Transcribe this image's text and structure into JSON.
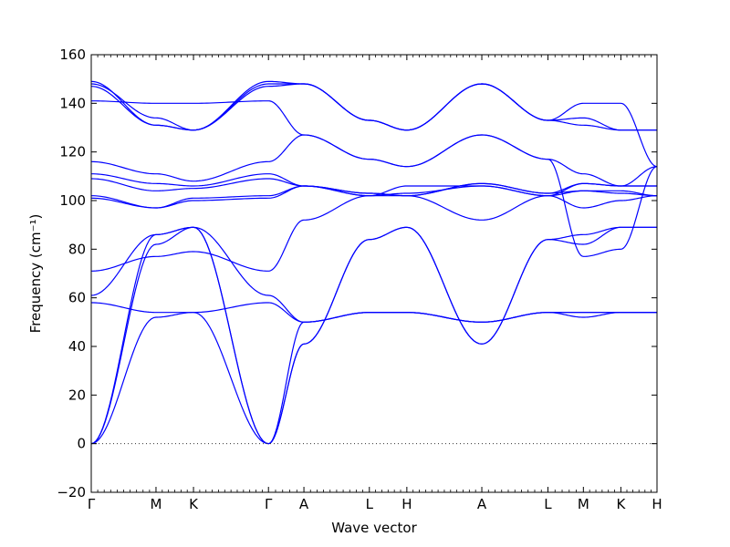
{
  "chart_data": {
    "type": "line",
    "title": "",
    "xlabel": "Wave vector",
    "ylabel": "Frequency (cm⁻¹)",
    "ylim": [
      -20,
      160
    ],
    "yticks": [
      -20,
      0,
      20,
      40,
      60,
      80,
      100,
      120,
      140,
      160
    ],
    "xlim": [
      0,
      8.3
    ],
    "high_symmetry_points": [
      {
        "label": "Γ",
        "x": 0.0
      },
      {
        "label": "M",
        "x": 0.95
      },
      {
        "label": "K",
        "x": 1.5
      },
      {
        "label": "Γ",
        "x": 2.6
      },
      {
        "label": "A",
        "x": 3.12
      },
      {
        "label": "L",
        "x": 4.08
      },
      {
        "label": "H",
        "x": 4.63
      },
      {
        "label": "A",
        "x": 5.73
      },
      {
        "label": "L",
        "x": 6.7
      },
      {
        "label": "M",
        "x": 7.22
      },
      {
        "label": "K",
        "x": 7.77
      },
      {
        "label": "H",
        "x": 8.3
      }
    ],
    "zero_line": true,
    "line_color": "#0000ff",
    "series": [
      {
        "x": [
          0,
          0.95,
          1.5,
          2.6,
          3.12,
          4.08,
          4.63,
          5.73,
          6.7,
          7.22,
          7.77,
          8.3
        ],
        "y": [
          0,
          52,
          54,
          0,
          50,
          54,
          54,
          50,
          54,
          52,
          54,
          54
        ]
      },
      {
        "x": [
          0,
          0.95,
          1.5,
          2.6,
          3.12,
          4.08,
          4.63,
          5.73,
          6.7,
          7.22,
          7.77,
          8.3
        ],
        "y": [
          0,
          82,
          89,
          0,
          41,
          84,
          89,
          41,
          84,
          82,
          89,
          89
        ]
      },
      {
        "x": [
          0,
          0.95,
          1.5,
          2.6,
          3.12,
          4.08,
          4.63,
          5.73,
          6.7,
          7.22,
          7.77,
          8.3
        ],
        "y": [
          0,
          86,
          89,
          0,
          41,
          84,
          89,
          41,
          84,
          86,
          89,
          89
        ]
      },
      {
        "x": [
          0,
          0.95,
          1.5,
          2.6,
          3.12,
          4.08,
          4.63,
          5.73,
          6.7,
          7.22,
          7.77,
          8.3
        ],
        "y": [
          58,
          54,
          54,
          58,
          50,
          54,
          54,
          50,
          54,
          54,
          54,
          54
        ]
      },
      {
        "x": [
          0,
          0.95,
          1.5,
          2.6,
          3.12,
          4.08,
          4.63,
          5.73,
          6.7,
          7.22,
          7.77,
          8.3
        ],
        "y": [
          61,
          86,
          89,
          61,
          50,
          54,
          54,
          50,
          54,
          54,
          54,
          54
        ]
      },
      {
        "x": [
          0,
          0.95,
          1.5,
          2.6,
          3.12,
          4.08,
          4.63,
          5.73,
          6.7,
          7.22,
          7.77,
          8.3
        ],
        "y": [
          71,
          77,
          79,
          71,
          92,
          102,
          102,
          92,
          102,
          97,
          100,
          102
        ]
      },
      {
        "x": [
          0,
          0.95,
          1.5,
          2.6,
          3.12,
          4.08,
          4.63,
          5.73,
          6.7,
          7.22,
          7.77,
          8.3
        ],
        "y": [
          101,
          97,
          100,
          101,
          106,
          102,
          106,
          106,
          102,
          104,
          104,
          102
        ]
      },
      {
        "x": [
          0,
          0.95,
          1.5,
          2.6,
          3.12,
          4.08,
          4.63,
          5.73,
          6.7,
          7.22,
          7.77,
          8.3
        ],
        "y": [
          102,
          97,
          101,
          102,
          106,
          102,
          103,
          106,
          102,
          107,
          106,
          106
        ]
      },
      {
        "x": [
          0,
          0.95,
          1.5,
          2.6,
          3.12,
          4.08,
          4.63,
          5.73,
          6.7,
          7.22,
          7.77,
          8.3
        ],
        "y": [
          109,
          104,
          105,
          109,
          106,
          103,
          102,
          107,
          103,
          107,
          106,
          106
        ]
      },
      {
        "x": [
          0,
          0.95,
          1.5,
          2.6,
          3.12,
          4.08,
          4.63,
          5.73,
          6.7,
          7.22,
          7.77,
          8.3
        ],
        "y": [
          111,
          107,
          106,
          111,
          106,
          103,
          102,
          107,
          103,
          104,
          103,
          102
        ]
      },
      {
        "x": [
          0,
          0.95,
          1.5,
          2.6,
          3.12,
          4.08,
          4.63,
          5.73,
          6.7,
          7.22,
          7.77,
          8.3
        ],
        "y": [
          116,
          111,
          108,
          116,
          127,
          117,
          114,
          127,
          117,
          111,
          106,
          114
        ]
      },
      {
        "x": [
          0,
          0.95,
          1.5,
          2.6,
          3.12,
          4.08,
          4.63,
          5.73,
          6.7,
          7.22,
          7.77,
          8.3
        ],
        "y": [
          141,
          140,
          140,
          141,
          127,
          117,
          114,
          127,
          117,
          77,
          80,
          114
        ]
      },
      {
        "x": [
          0,
          0.95,
          1.5,
          2.6,
          3.12,
          4.08,
          4.63,
          5.73,
          6.7,
          7.22,
          7.77,
          8.3
        ],
        "y": [
          147,
          131,
          129,
          147,
          148,
          133,
          129,
          148,
          133,
          131,
          129,
          129
        ]
      },
      {
        "x": [
          0,
          0.95,
          1.5,
          2.6,
          3.12,
          4.08,
          4.63,
          5.73,
          6.7,
          7.22,
          7.77,
          8.3
        ],
        "y": [
          148,
          134,
          129,
          148,
          148,
          133,
          129,
          148,
          133,
          134,
          129,
          129
        ]
      },
      {
        "x": [
          0,
          0.95,
          1.5,
          2.6,
          3.12,
          4.08,
          4.63,
          5.73,
          6.7,
          7.22,
          7.77,
          8.3
        ],
        "y": [
          149,
          131,
          129,
          149,
          148,
          133,
          129,
          148,
          133,
          140,
          140,
          114
        ]
      }
    ]
  }
}
